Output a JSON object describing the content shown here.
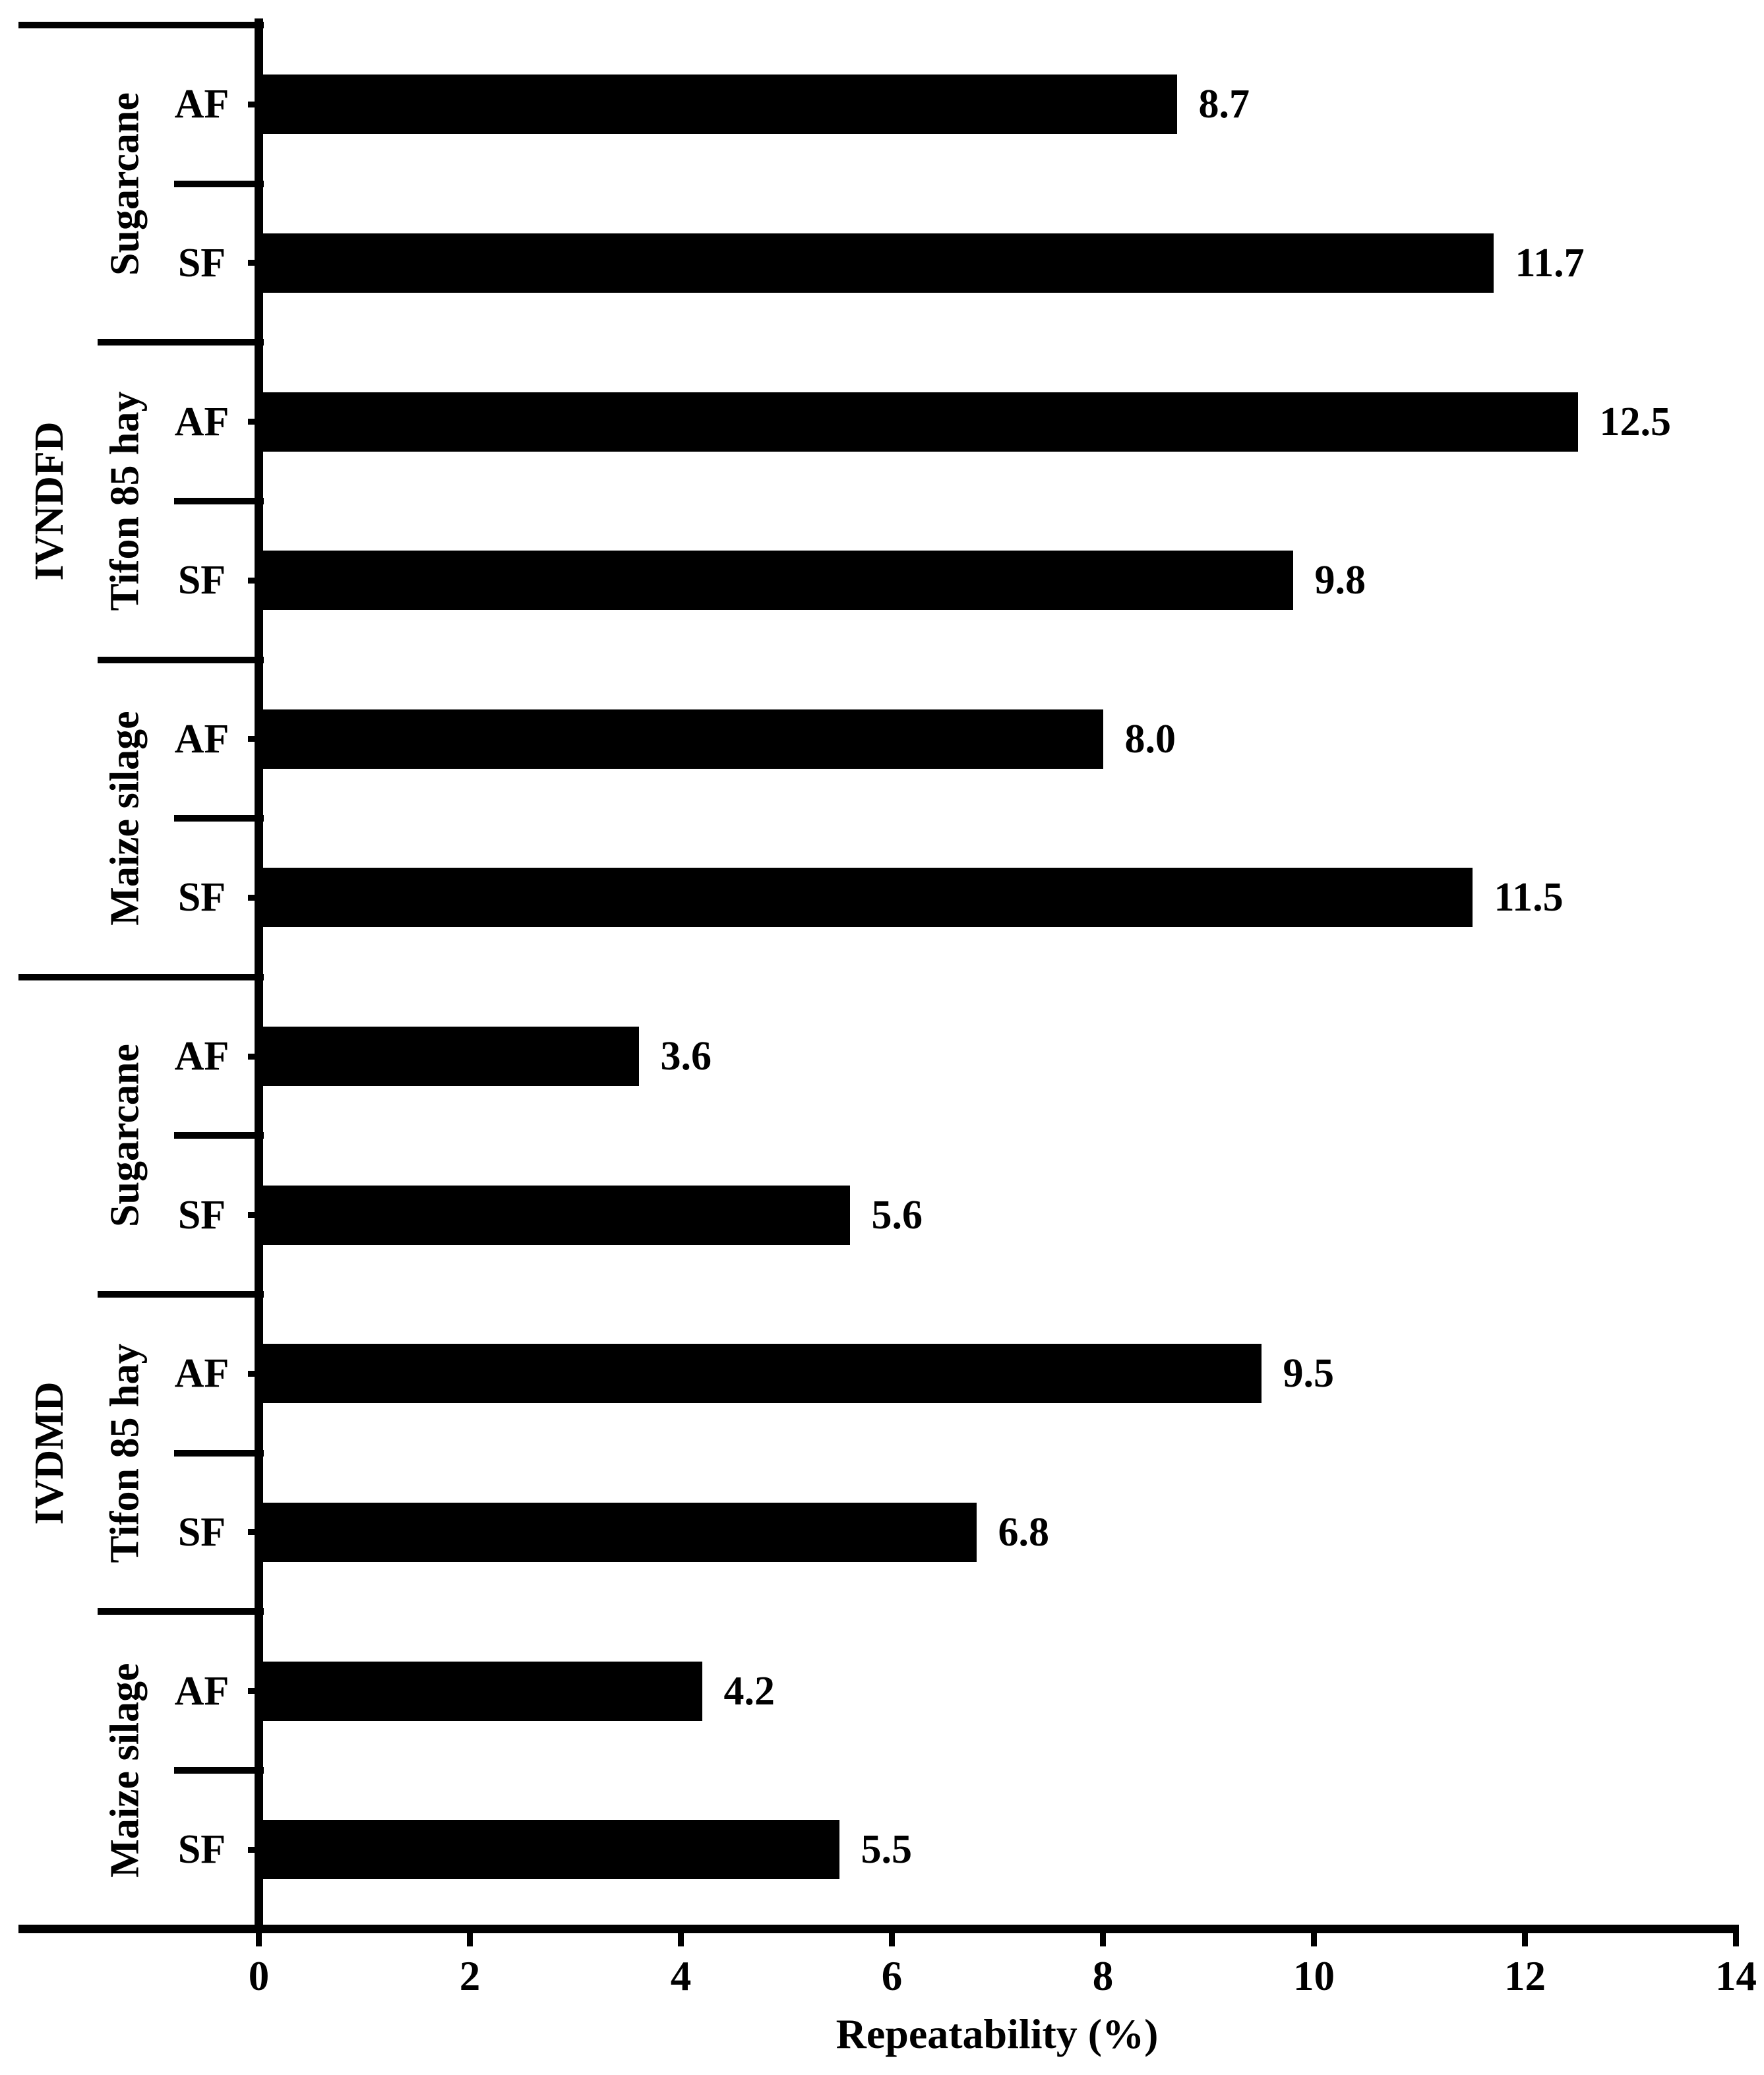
{
  "chart_data": {
    "type": "bar",
    "orientation": "horizontal",
    "title": "",
    "xlabel": "Repeatability (%)",
    "ylabel": "",
    "xlim": [
      0,
      14
    ],
    "xticks": [
      "0",
      "2",
      "4",
      "6",
      "8",
      "10",
      "12",
      "14"
    ],
    "grid": false,
    "legend": "none",
    "bar_color": "#000000",
    "background_color": "#ffffff",
    "value_labels_shown": true,
    "groups": [
      {
        "label": "IVNDFD",
        "subgroups": [
          {
            "label": "Sugarcane",
            "bars": [
              {
                "label": "AF",
                "value": 8.7,
                "display": "8.7"
              },
              {
                "label": "SF",
                "value": 11.7,
                "display": "11.7"
              }
            ]
          },
          {
            "label": "Tifon 85 hay",
            "bars": [
              {
                "label": "AF",
                "value": 12.5,
                "display": "12.5"
              },
              {
                "label": "SF",
                "value": 9.8,
                "display": "9.8"
              }
            ]
          },
          {
            "label": "Maize silage",
            "bars": [
              {
                "label": "AF",
                "value": 8.0,
                "display": "8.0"
              },
              {
                "label": "SF",
                "value": 11.5,
                "display": "11.5"
              }
            ]
          }
        ]
      },
      {
        "label": "IVDMD",
        "subgroups": [
          {
            "label": "Sugarcane",
            "bars": [
              {
                "label": "AF",
                "value": 3.6,
                "display": "3.6"
              },
              {
                "label": "SF",
                "value": 5.6,
                "display": "5.6"
              }
            ]
          },
          {
            "label": "Tifon 85 hay",
            "bars": [
              {
                "label": "AF",
                "value": 9.5,
                "display": "9.5"
              },
              {
                "label": "SF",
                "value": 6.8,
                "display": "6.8"
              }
            ]
          },
          {
            "label": "Maize silage",
            "bars": [
              {
                "label": "AF",
                "value": 4.2,
                "display": "4.2"
              },
              {
                "label": "SF",
                "value": 5.5,
                "display": "5.5"
              }
            ]
          }
        ]
      }
    ]
  }
}
